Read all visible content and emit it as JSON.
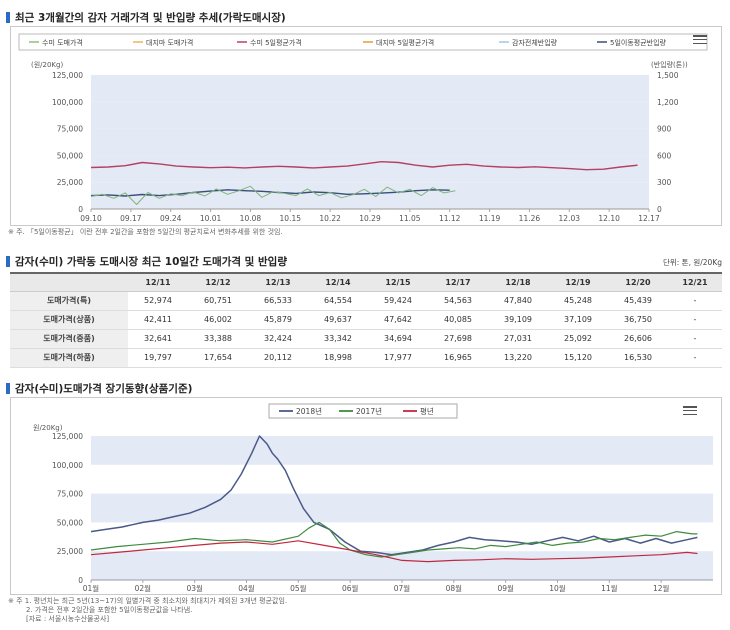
{
  "section1": {
    "title": "최근 3개월간의 감자 거래가격 및 반입량 추세(가락도매시장)",
    "y_left_unit": "(원/20Kg)",
    "y_right_unit": "(반입량(톤))",
    "note": "※ 주. 「5일이동평균」 이란 전후 2일간을 포함한 5일간의 평균치로서 변화추세를 위한 것임."
  },
  "section2": {
    "title": "감자(수미) 가락동 도매시장 최근 10일간 도매가격 및 반입량",
    "unit": "단위: 톤, 원/20Kg",
    "columns": [
      "",
      "12/11",
      "12/12",
      "12/13",
      "12/14",
      "12/15",
      "12/17",
      "12/18",
      "12/19",
      "12/20",
      "12/21"
    ],
    "rows": [
      {
        "label": "도매가격(특)",
        "values": [
          "52,974",
          "60,751",
          "66,533",
          "64,554",
          "59,424",
          "54,563",
          "47,840",
          "45,248",
          "45,439",
          "-"
        ]
      },
      {
        "label": "도매가격(상품)",
        "values": [
          "42,411",
          "46,002",
          "45,879",
          "49,637",
          "47,642",
          "40,085",
          "39,109",
          "37,109",
          "36,750",
          "-"
        ]
      },
      {
        "label": "도매가격(중품)",
        "values": [
          "32,641",
          "33,388",
          "32,424",
          "33,342",
          "34,694",
          "27,698",
          "27,031",
          "25,092",
          "26,606",
          "-"
        ]
      },
      {
        "label": "도매가격(하품)",
        "values": [
          "19,797",
          "17,654",
          "20,112",
          "18,998",
          "17,977",
          "16,965",
          "13,220",
          "15,120",
          "16,530",
          "-"
        ]
      }
    ]
  },
  "section3": {
    "title": "감자(수미)도매가격 장기동향(상품기준)",
    "y_unit": "원/20Kg)",
    "note_lines": [
      "※ 주 1. 평년치는 최근 5년(13~17)의 일별가격 중 최소치와 최대치가 제외된 3개년 평균값임.",
      "2. 가격은 전후 2일간을 포함한 5일이동평균값을 나타냄.",
      "[자료 : 서울시농수산물공사]"
    ]
  },
  "chart_data": [
    {
      "type": "line",
      "title": "최근 3개월간의 감자 거래가격 및 반입량 추세(가락도매시장)",
      "x_ticks": [
        "09.10",
        "09.17",
        "09.24",
        "10.01",
        "10.08",
        "10.15",
        "10.22",
        "10.29",
        "11.05",
        "11.12",
        "11.19",
        "11.26",
        "12.03",
        "12.10",
        "12.17"
      ],
      "ylim": [
        0,
        125000
      ],
      "y_ticks": [
        "0",
        "25,000",
        "50,000",
        "75,000",
        "100,000",
        "125,000"
      ],
      "y2lim": [
        0,
        1500
      ],
      "y2_ticks": [
        "0",
        "300",
        "600",
        "900",
        "1,200",
        "1,500"
      ],
      "legend": [
        "수미 도매가격",
        "대지마 도매가격",
        "수미 5일평균가격",
        "대지마 5일평균가격",
        "감자전체반입량",
        "5일이동평균반입량"
      ],
      "legend_colors": [
        "#8fbf7f",
        "#f0b060",
        "#c04060",
        "#e0a030",
        "#a0c8e0",
        "#3a4e7a"
      ],
      "series": [
        {
          "name": "수미 5일평균가격",
          "axis": "right",
          "color": "#b5405f",
          "width": 1.4,
          "x": [
            0,
            3,
            6,
            9,
            12,
            15,
            18,
            21,
            24,
            27,
            30,
            33,
            36,
            39,
            42,
            45,
            48,
            51,
            54,
            57,
            60,
            63,
            66,
            69,
            72,
            75,
            78,
            81,
            84,
            87,
            90,
            93,
            96
          ],
          "y": [
            465,
            470,
            485,
            520,
            505,
            480,
            470,
            462,
            468,
            460,
            470,
            478,
            470,
            460,
            470,
            480,
            505,
            530,
            520,
            490,
            470,
            490,
            500,
            480,
            470,
            465,
            472,
            462,
            452,
            440,
            445,
            470,
            490
          ]
        },
        {
          "name": "5일이동평균반입량",
          "axis": "right",
          "color": "#3a4e7a",
          "width": 1.4,
          "x": [
            0,
            3,
            6,
            9,
            12,
            15,
            18,
            21,
            24,
            27,
            30,
            33,
            36,
            39,
            42,
            45,
            48,
            51,
            54,
            57,
            60,
            63
          ],
          "y": [
            150,
            158,
            145,
            162,
            150,
            165,
            185,
            200,
            215,
            205,
            198,
            185,
            175,
            190,
            182,
            165,
            170,
            178,
            188,
            205,
            215,
            210
          ]
        },
        {
          "name": "감자전체반입량",
          "axis": "right",
          "color": "#7fb57a",
          "width": 1,
          "x": [
            0,
            2,
            4,
            6,
            8,
            10,
            12,
            14,
            16,
            18,
            20,
            22,
            24,
            26,
            28,
            30,
            32,
            34,
            36,
            38,
            40,
            42,
            44,
            46,
            48,
            50,
            52,
            54,
            56,
            58,
            60,
            62,
            64
          ],
          "y": [
            140,
            165,
            120,
            180,
            50,
            185,
            120,
            170,
            150,
            190,
            145,
            225,
            165,
            205,
            255,
            130,
            195,
            175,
            150,
            225,
            150,
            185,
            125,
            160,
            220,
            140,
            245,
            180,
            220,
            150,
            240,
            180,
            205
          ]
        }
      ]
    },
    {
      "type": "line",
      "title": "감자(수미)도매가격 장기동향(상품기준)",
      "x_ticks": [
        "01월",
        "02월",
        "03월",
        "04월",
        "05월",
        "06월",
        "07월",
        "08월",
        "09월",
        "10월",
        "11월",
        "12월"
      ],
      "ylim": [
        0,
        125000
      ],
      "y_ticks": [
        "0",
        "25,000",
        "50,000",
        "75,000",
        "100,000",
        "125,000"
      ],
      "series": [
        {
          "name": "2018년",
          "color": "#4a5a88",
          "width": 1.5,
          "x": [
            0,
            0.3,
            0.6,
            0.8,
            1.0,
            1.3,
            1.6,
            1.9,
            2.2,
            2.5,
            2.7,
            2.9,
            3.1,
            3.25,
            3.4,
            3.5,
            3.6,
            3.75,
            3.9,
            4.1,
            4.3,
            4.6,
            4.9,
            5.2,
            5.5,
            5.8,
            6.1,
            6.4,
            6.7,
            7.0,
            7.3,
            7.6,
            7.9,
            8.2,
            8.5,
            8.8,
            9.1,
            9.4,
            9.7,
            10.0,
            10.3,
            10.6,
            10.9,
            11.2,
            11.5,
            11.7
          ],
          "y": [
            42000,
            44000,
            46000,
            48000,
            50000,
            52000,
            55000,
            58000,
            63000,
            70000,
            78000,
            92000,
            110000,
            125000,
            118000,
            110000,
            105000,
            95000,
            80000,
            62000,
            50000,
            44000,
            33000,
            25000,
            24000,
            22000,
            24000,
            26000,
            30000,
            33000,
            37000,
            35000,
            34000,
            33000,
            31000,
            34000,
            37000,
            34000,
            38000,
            33000,
            36000,
            32000,
            36000,
            32000,
            35000,
            37000
          ]
        },
        {
          "name": "2017년",
          "color": "#3f8a3f",
          "width": 1.2,
          "x": [
            0,
            0.5,
            1.0,
            1.5,
            2.0,
            2.5,
            3.0,
            3.5,
            4.0,
            4.2,
            4.4,
            4.6,
            4.8,
            5.0,
            5.3,
            5.6,
            5.9,
            6.2,
            6.5,
            6.8,
            7.1,
            7.4,
            7.7,
            8.0,
            8.3,
            8.6,
            8.9,
            9.2,
            9.5,
            9.8,
            10.1,
            10.4,
            10.7,
            11.0,
            11.3,
            11.6,
            11.7
          ],
          "y": [
            26000,
            29000,
            31000,
            33000,
            36000,
            34000,
            35000,
            33000,
            38000,
            45000,
            50000,
            44000,
            32000,
            26000,
            22000,
            20000,
            22000,
            24000,
            26000,
            27000,
            28000,
            27000,
            30000,
            29000,
            31000,
            33000,
            30000,
            32000,
            33000,
            36000,
            35000,
            37000,
            39000,
            38000,
            42000,
            40000,
            40000
          ]
        },
        {
          "name": "평년",
          "color": "#c0283f",
          "width": 1.2,
          "x": [
            0,
            0.5,
            1.0,
            1.5,
            2.0,
            2.5,
            3.0,
            3.5,
            4.0,
            4.5,
            5.0,
            5.5,
            6.0,
            6.5,
            7.0,
            7.5,
            8.0,
            8.5,
            9.0,
            9.5,
            10.0,
            10.5,
            11.0,
            11.5,
            11.7
          ],
          "y": [
            22000,
            24000,
            26000,
            28000,
            30000,
            32000,
            33000,
            31000,
            34000,
            30000,
            26000,
            22000,
            17000,
            16000,
            17000,
            17500,
            18500,
            18000,
            18500,
            19000,
            20000,
            21000,
            22000,
            24000,
            23000
          ]
        }
      ]
    }
  ]
}
